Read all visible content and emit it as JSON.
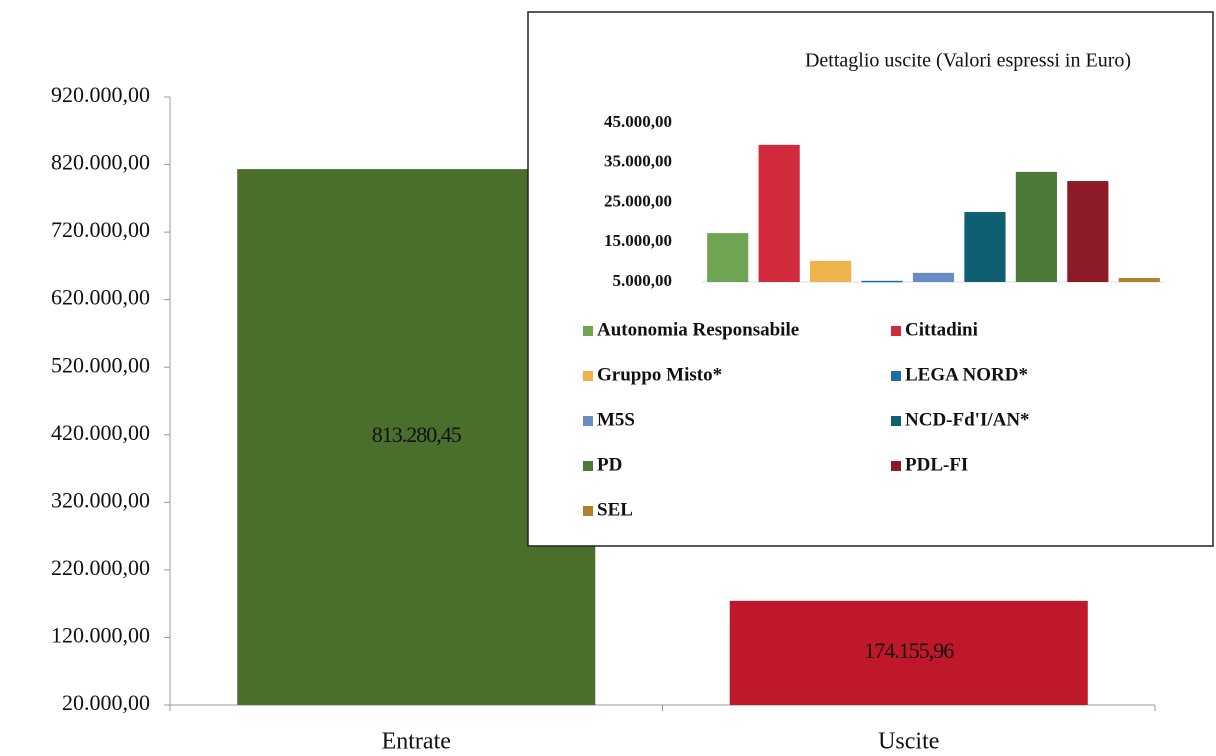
{
  "chart_data": [
    {
      "type": "bar",
      "categories": [
        "Entrate",
        "Uscite"
      ],
      "values": [
        813280.45,
        174155.96
      ],
      "value_labels": [
        "813.280,45",
        "174.155,96"
      ],
      "colors": [
        "#4a6e2c",
        "#c0182b"
      ],
      "ylim": [
        20000,
        920000
      ],
      "yticks": [
        {
          "value": 20000,
          "label": "20.000,00"
        },
        {
          "value": 120000,
          "label": "120.000,00"
        },
        {
          "value": 220000,
          "label": "220.000,00"
        },
        {
          "value": 320000,
          "label": "320.000,00"
        },
        {
          "value": 420000,
          "label": "420.000,00"
        },
        {
          "value": 520000,
          "label": "520.000,00"
        },
        {
          "value": 620000,
          "label": "620.000,00"
        },
        {
          "value": 720000,
          "label": "720.000,00"
        },
        {
          "value": 820000,
          "label": "820.000,00"
        },
        {
          "value": 920000,
          "label": "920.000,00"
        }
      ]
    },
    {
      "type": "bar",
      "title": "Dettaglio uscite (Valori espressi in Euro)",
      "categories": [
        "Autonomia Responsabile",
        "Cittadini",
        "Gruppo Misto*",
        "LEGA NORD*",
        "M5S",
        "NCD-Fd'I/AN*",
        "PD",
        "PDL-FI",
        "SEL"
      ],
      "values": [
        17300,
        39500,
        10300,
        5300,
        7300,
        22600,
        32700,
        30400,
        6000
      ],
      "colors": [
        "#6fa552",
        "#d12a3c",
        "#f0b24a",
        "#1b6ea8",
        "#6a8cc6",
        "#0f5f73",
        "#4b7b36",
        "#8c1a27",
        "#b0802e"
      ],
      "ylim": [
        5000,
        45000
      ],
      "yticks": [
        {
          "value": 5000,
          "label": "5.000,00"
        },
        {
          "value": 15000,
          "label": "15.000,00"
        },
        {
          "value": 25000,
          "label": "25.000,00"
        },
        {
          "value": 35000,
          "label": "35.000,00"
        },
        {
          "value": 45000,
          "label": "45.000,00"
        }
      ]
    }
  ]
}
